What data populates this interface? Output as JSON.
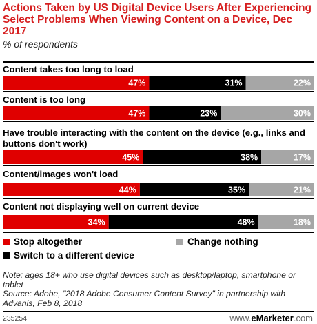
{
  "header": {
    "title": "Actions Taken by US Digital Device Users After Experiencing Select Problems When Viewing Content on a Device, Dec 2017",
    "subtitle": "% of respondents"
  },
  "colors": {
    "stop": "#e00000",
    "switch": "#000000",
    "nothing": "#a6a6a6",
    "title": "#d61f20"
  },
  "chart_data": {
    "type": "bar",
    "stacked": true,
    "orientation": "horizontal",
    "title": "Actions Taken by US Digital Device Users After Experiencing Select Problems When Viewing Content on a Device, Dec 2017",
    "subtitle": "% of respondents",
    "categories": [
      "Content takes too long to load",
      "Content is too long",
      "Have trouble interacting with the content on the device (e.g., links and buttons don't work)",
      "Content/images won't load",
      "Content not displaying well on current device"
    ],
    "series": [
      {
        "name": "Stop altogether",
        "values": [
          47,
          47,
          45,
          44,
          34
        ]
      },
      {
        "name": "Switch to a different device",
        "values": [
          31,
          23,
          38,
          35,
          48
        ]
      },
      {
        "name": "Change nothing",
        "values": [
          22,
          30,
          17,
          21,
          18
        ]
      }
    ],
    "value_suffix": "%",
    "legend_position": "bottom"
  },
  "legend": {
    "stop": "Stop altogether",
    "switch": "Switch to a different device",
    "nothing": "Change nothing"
  },
  "footer": {
    "note": "Note: ages 18+ who use digital devices such as desktop/laptop, smartphone or tablet",
    "source": "Source: Adobe, \"2018 Adobe Consumer Content Survey\" in partnership with Advanis, Feb 8, 2018",
    "chart_id": "235254",
    "brand_prefix": "www.",
    "brand_name": "eMarketer",
    "brand_suffix": ".com"
  }
}
